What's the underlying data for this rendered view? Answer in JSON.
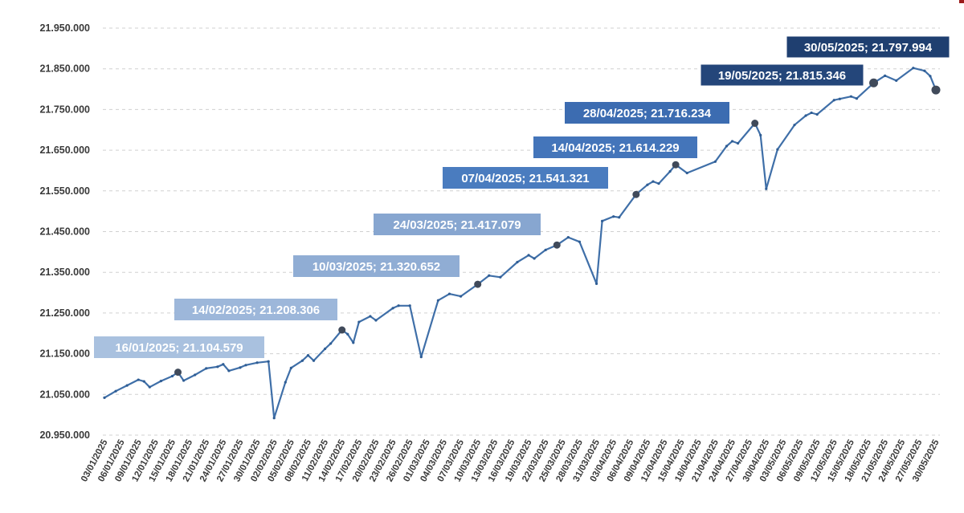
{
  "chart_data": {
    "type": "line",
    "title": "",
    "xlabel": "",
    "ylabel": "",
    "ylim": [
      20950000,
      21950000
    ],
    "grid": true,
    "legend": "none",
    "line_color": "#3f6fa8",
    "y_ticks": [
      20950000,
      21050000,
      21150000,
      21250000,
      21350000,
      21450000,
      21550000,
      21650000,
      21750000,
      21850000,
      21950000
    ],
    "y_tick_labels": [
      "20.950.000",
      "21.050.000",
      "21.150.000",
      "21.250.000",
      "21.350.000",
      "21.450.000",
      "21.550.000",
      "21.650.000",
      "21.750.000",
      "21.850.000",
      "21.950.000"
    ],
    "x_tick_labels": [
      "03/01/2025",
      "06/01/2025",
      "09/01/2025",
      "12/01/2025",
      "15/01/2025",
      "18/01/2025",
      "21/01/2025",
      "24/01/2025",
      "27/01/2025",
      "30/01/2025",
      "02/02/2025",
      "05/02/2025",
      "08/02/2025",
      "11/02/2025",
      "14/02/2025",
      "17/02/2025",
      "20/02/2025",
      "23/02/2025",
      "26/02/2025",
      "01/03/2025",
      "04/03/2025",
      "07/03/2025",
      "10/03/2025",
      "13/03/2025",
      "16/03/2025",
      "19/03/2025",
      "22/03/2025",
      "25/03/2025",
      "28/03/2025",
      "31/03/2025",
      "03/04/2025",
      "06/04/2025",
      "09/04/2025",
      "12/04/2025",
      "15/04/2025",
      "18/04/2025",
      "21/04/2025",
      "24/04/2025",
      "27/04/2025",
      "30/04/2025",
      "03/05/2025",
      "06/05/2025",
      "09/05/2025",
      "12/05/2025",
      "15/05/2025",
      "18/05/2025",
      "21/05/2025",
      "24/05/2025",
      "27/05/2025",
      "30/05/2025"
    ],
    "series": [
      {
        "points": [
          [
            "2025-01-03",
            21042000
          ],
          [
            "2025-01-05",
            21058000
          ],
          [
            "2025-01-07",
            21072000
          ],
          [
            "2025-01-09",
            21086000
          ],
          [
            "2025-01-10",
            21082000
          ],
          [
            "2025-01-11",
            21068000
          ],
          [
            "2025-01-13",
            21083000
          ],
          [
            "2025-01-15",
            21095000
          ],
          [
            "2025-01-16",
            21104579
          ],
          [
            "2025-01-17",
            21084000
          ],
          [
            "2025-01-19",
            21098000
          ],
          [
            "2025-01-21",
            21114000
          ],
          [
            "2025-01-23",
            21118000
          ],
          [
            "2025-01-24",
            21124000
          ],
          [
            "2025-01-25",
            21108000
          ],
          [
            "2025-01-27",
            21116000
          ],
          [
            "2025-01-28",
            21122000
          ],
          [
            "2025-01-30",
            21128000
          ],
          [
            "2025-02-01",
            21131000
          ],
          [
            "2025-02-02",
            20992000
          ],
          [
            "2025-02-04",
            21080000
          ],
          [
            "2025-02-05",
            21115000
          ],
          [
            "2025-02-07",
            21133000
          ],
          [
            "2025-02-08",
            21146000
          ],
          [
            "2025-02-09",
            21133000
          ],
          [
            "2025-02-11",
            21162000
          ],
          [
            "2025-02-12",
            21175000
          ],
          [
            "2025-02-14",
            21208306
          ],
          [
            "2025-02-15",
            21198000
          ],
          [
            "2025-02-16",
            21177000
          ],
          [
            "2025-02-17",
            21228000
          ],
          [
            "2025-02-19",
            21242000
          ],
          [
            "2025-02-20",
            21232000
          ],
          [
            "2025-02-23",
            21262000
          ],
          [
            "2025-02-24",
            21268000
          ],
          [
            "2025-02-26",
            21268000
          ],
          [
            "2025-02-28",
            21142000
          ],
          [
            "2025-03-03",
            21281000
          ],
          [
            "2025-03-05",
            21297000
          ],
          [
            "2025-03-07",
            21291000
          ],
          [
            "2025-03-10",
            21320652
          ],
          [
            "2025-03-12",
            21342000
          ],
          [
            "2025-03-14",
            21338000
          ],
          [
            "2025-03-17",
            21375000
          ],
          [
            "2025-03-19",
            21392000
          ],
          [
            "2025-03-20",
            21384000
          ],
          [
            "2025-03-22",
            21405000
          ],
          [
            "2025-03-24",
            21417079
          ],
          [
            "2025-03-26",
            21436000
          ],
          [
            "2025-03-28",
            21425000
          ],
          [
            "2025-03-31",
            21322000
          ],
          [
            "2025-04-01",
            21476000
          ],
          [
            "2025-04-03",
            21487000
          ],
          [
            "2025-04-04",
            21485000
          ],
          [
            "2025-04-07",
            21541321
          ],
          [
            "2025-04-09",
            21565000
          ],
          [
            "2025-04-10",
            21573000
          ],
          [
            "2025-04-11",
            21568000
          ],
          [
            "2025-04-13",
            21598000
          ],
          [
            "2025-04-14",
            21614229
          ],
          [
            "2025-04-16",
            21594000
          ],
          [
            "2025-04-21",
            21622000
          ],
          [
            "2025-04-23",
            21660000
          ],
          [
            "2025-04-24",
            21672000
          ],
          [
            "2025-04-25",
            21667000
          ],
          [
            "2025-04-28",
            21716234
          ],
          [
            "2025-04-29",
            21687000
          ],
          [
            "2025-04-30",
            21555000
          ],
          [
            "2025-05-02",
            21652000
          ],
          [
            "2025-05-05",
            21712000
          ],
          [
            "2025-05-07",
            21735000
          ],
          [
            "2025-05-08",
            21742000
          ],
          [
            "2025-05-09",
            21738000
          ],
          [
            "2025-05-12",
            21773000
          ],
          [
            "2025-05-13",
            21776000
          ],
          [
            "2025-05-15",
            21782000
          ],
          [
            "2025-05-16",
            21777000
          ],
          [
            "2025-05-19",
            21815346
          ],
          [
            "2025-05-21",
            21833000
          ],
          [
            "2025-05-23",
            21821000
          ],
          [
            "2025-05-26",
            21852000
          ],
          [
            "2025-05-28",
            21845000
          ],
          [
            "2025-05-29",
            21832000
          ],
          [
            "2025-05-30",
            21797994
          ]
        ]
      }
    ],
    "annotations": [
      {
        "date": "2025-01-16",
        "value": 21104579,
        "label": "16/01/2025; 21.104.579",
        "bg": "#a9c1df"
      },
      {
        "date": "2025-02-14",
        "value": 21208306,
        "label": "14/02/2025; 21.208.306",
        "bg": "#9db7da"
      },
      {
        "date": "2025-03-10",
        "value": 21320652,
        "label": "10/03/2025; 21.320.652",
        "bg": "#90add4"
      },
      {
        "date": "2025-03-24",
        "value": 21417079,
        "label": "24/03/2025; 21.417.079",
        "bg": "#87a6d0"
      },
      {
        "date": "2025-04-07",
        "value": 21541321,
        "label": "07/04/2025; 21.541.321",
        "bg": "#4a7cbf"
      },
      {
        "date": "2025-04-14",
        "value": 21614229,
        "label": "14/04/2025; 21.614.229",
        "bg": "#4475ba"
      },
      {
        "date": "2025-04-28",
        "value": 21716234,
        "label": "28/04/2025; 21.716.234",
        "bg": "#3c6cb1"
      },
      {
        "date": "2025-05-19",
        "value": 21815346,
        "label": "19/05/2025; 21.815.346",
        "bg": "#24467a"
      },
      {
        "date": "2025-05-30",
        "value": 21797994,
        "label": "30/05/2025; 21.797.994",
        "bg": "#1f3f70"
      }
    ]
  }
}
